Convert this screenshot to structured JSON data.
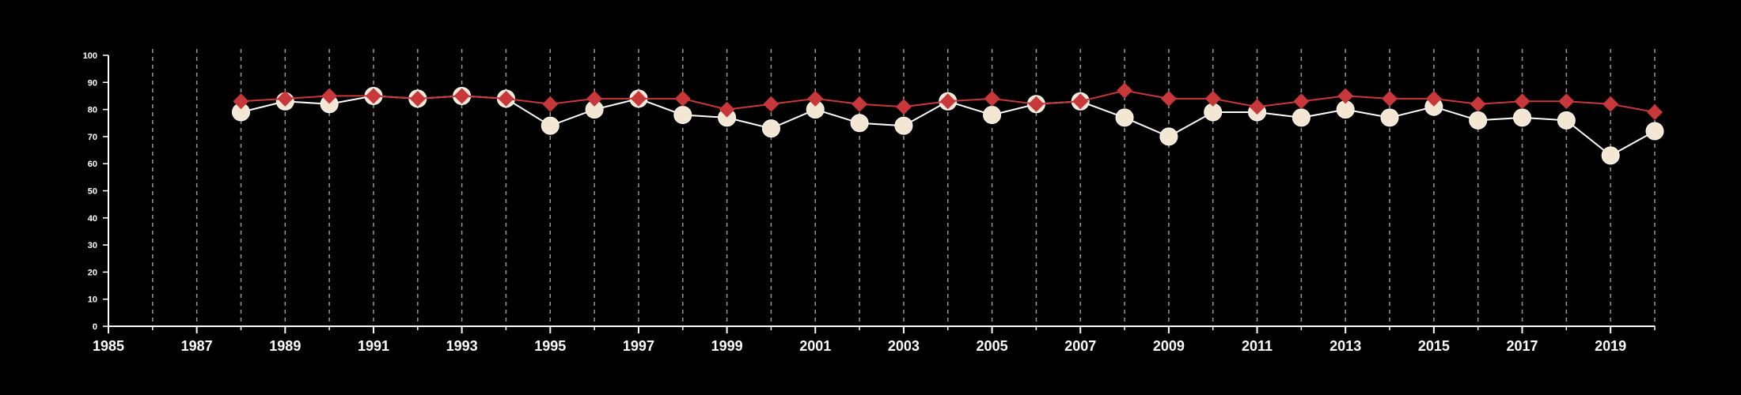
{
  "chart_data": {
    "type": "line",
    "title": "",
    "xlabel": "",
    "ylabel": "",
    "xlim": [
      1985,
      2020
    ],
    "ylim": [
      0,
      100
    ],
    "x_ticks": [
      1985,
      1987,
      1989,
      1991,
      1993,
      1995,
      1997,
      1999,
      2001,
      2003,
      2005,
      2007,
      2009,
      2011,
      2013,
      2015,
      2017,
      2019
    ],
    "y_ticks": [
      0,
      10,
      20,
      30,
      40,
      50,
      60,
      70,
      80,
      90,
      100
    ],
    "grid": "vertical dashed lines at each year",
    "legend": "none",
    "colors": {
      "background": "#000000",
      "axis": "#ffffff",
      "grid": "#9a9a9a",
      "series_diamond": "#c8383a",
      "series_circle_fill": "#f3e7d3",
      "series_circle_line": "#ffffff"
    },
    "series": [
      {
        "marker": "diamond",
        "x": [
          1988,
          1989,
          1990,
          1991,
          1992,
          1993,
          1994,
          1995,
          1996,
          1997,
          1998,
          1999,
          2000,
          2001,
          2002,
          2003,
          2004,
          2005,
          2006,
          2007,
          2008,
          2009,
          2010,
          2011,
          2012,
          2013,
          2014,
          2015,
          2016,
          2017,
          2018,
          2019,
          2020
        ],
        "values": [
          83,
          84,
          85,
          85,
          84,
          85,
          84,
          82,
          84,
          84,
          84,
          80,
          82,
          84,
          82,
          81,
          83,
          84,
          82,
          83,
          87,
          84,
          84,
          81,
          83,
          85,
          84,
          84,
          82,
          83,
          83,
          82,
          79
        ]
      },
      {
        "marker": "circle",
        "x": [
          1988,
          1989,
          1990,
          1991,
          1992,
          1993,
          1994,
          1995,
          1996,
          1997,
          1998,
          1999,
          2000,
          2001,
          2002,
          2003,
          2004,
          2005,
          2006,
          2007,
          2008,
          2009,
          2010,
          2011,
          2012,
          2013,
          2014,
          2015,
          2016,
          2017,
          2018,
          2019,
          2020
        ],
        "values": [
          79,
          83,
          82,
          85,
          84,
          85,
          84,
          74,
          80,
          84,
          78,
          77,
          73,
          80,
          75,
          74,
          83,
          78,
          82,
          83,
          77,
          70,
          79,
          79,
          77,
          80,
          77,
          81,
          76,
          77,
          76,
          63,
          72
        ]
      }
    ]
  }
}
